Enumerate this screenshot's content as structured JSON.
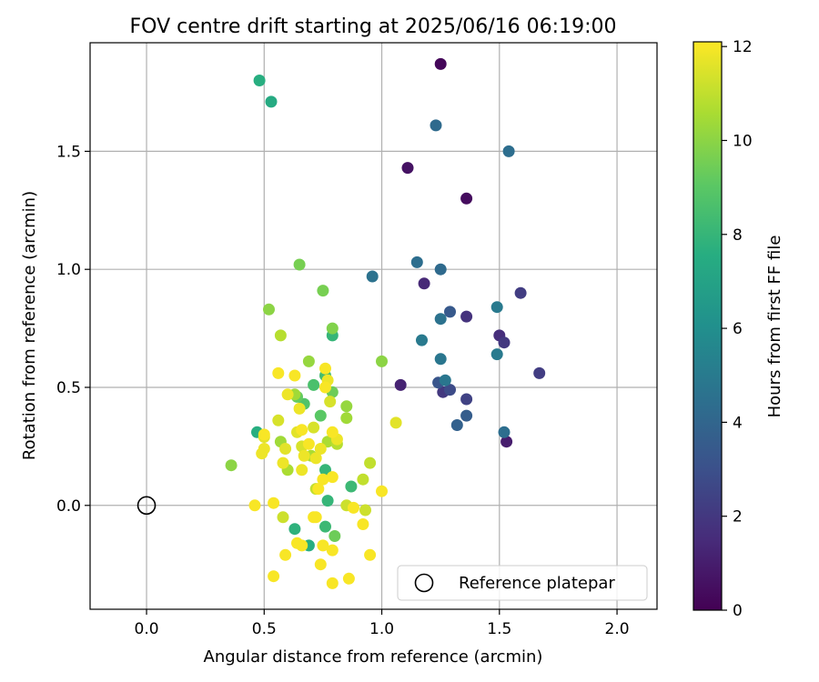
{
  "chart_data": {
    "type": "scatter",
    "title": "FOV centre drift starting at 2025/06/16 06:19:00",
    "xlabel": "Angular distance from reference (arcmin)",
    "ylabel": "Rotation from reference (arcmin)",
    "xlim": [
      -0.24,
      2.17
    ],
    "ylim": [
      -0.44,
      1.96
    ],
    "xticks": [
      0.0,
      0.5,
      1.0,
      1.5,
      2.0
    ],
    "xtick_labels": [
      "0.0",
      "0.5",
      "1.0",
      "1.5",
      "2.0"
    ],
    "yticks": [
      0.0,
      0.5,
      1.0,
      1.5
    ],
    "ytick_labels": [
      "0.0",
      "0.5",
      "1.0",
      "1.5"
    ],
    "grid": true,
    "legend": {
      "location": "lower-right",
      "entries": [
        "Reference platepar"
      ]
    },
    "colorbar": {
      "label": "Hours from first FF file",
      "colormap": "viridis",
      "min": 0,
      "max": 12.1,
      "ticks": [
        0,
        2,
        4,
        6,
        8,
        10,
        12
      ],
      "tick_labels": [
        "0",
        "2",
        "4",
        "6",
        "8",
        "10",
        "12"
      ]
    },
    "reference_point": {
      "name": "Reference platepar",
      "x": 0.0,
      "y": 0.0,
      "marker": "open-circle"
    },
    "points": [
      {
        "x": 1.25,
        "y": 1.87,
        "h": 0.2
      },
      {
        "x": 1.36,
        "y": 1.3,
        "h": 0.4
      },
      {
        "x": 1.11,
        "y": 1.43,
        "h": 0.6
      },
      {
        "x": 1.53,
        "y": 0.27,
        "h": 1.0
      },
      {
        "x": 1.08,
        "y": 0.51,
        "h": 1.2
      },
      {
        "x": 1.18,
        "y": 0.94,
        "h": 1.4
      },
      {
        "x": 1.5,
        "y": 0.72,
        "h": 1.6
      },
      {
        "x": 1.36,
        "y": 0.8,
        "h": 1.8
      },
      {
        "x": 1.26,
        "y": 0.48,
        "h": 2.0
      },
      {
        "x": 1.52,
        "y": 0.69,
        "h": 2.0
      },
      {
        "x": 1.59,
        "y": 0.9,
        "h": 2.2
      },
      {
        "x": 1.67,
        "y": 0.56,
        "h": 2.2
      },
      {
        "x": 1.36,
        "y": 0.45,
        "h": 2.4
      },
      {
        "x": 1.29,
        "y": 0.49,
        "h": 2.8
      },
      {
        "x": 1.24,
        "y": 0.52,
        "h": 3.2
      },
      {
        "x": 1.29,
        "y": 0.82,
        "h": 3.4
      },
      {
        "x": 1.36,
        "y": 0.38,
        "h": 3.6
      },
      {
        "x": 1.32,
        "y": 0.34,
        "h": 3.8
      },
      {
        "x": 1.23,
        "y": 1.61,
        "h": 4.2
      },
      {
        "x": 1.25,
        "y": 1.0,
        "h": 4.2
      },
      {
        "x": 1.54,
        "y": 1.5,
        "h": 4.4
      },
      {
        "x": 1.52,
        "y": 0.31,
        "h": 4.4
      },
      {
        "x": 1.15,
        "y": 1.03,
        "h": 4.4
      },
      {
        "x": 0.96,
        "y": 0.97,
        "h": 4.6
      },
      {
        "x": 1.25,
        "y": 0.79,
        "h": 4.6
      },
      {
        "x": 1.27,
        "y": 0.53,
        "h": 4.8
      },
      {
        "x": 1.25,
        "y": 0.62,
        "h": 4.8
      },
      {
        "x": 1.17,
        "y": 0.7,
        "h": 5.0
      },
      {
        "x": 1.49,
        "y": 0.84,
        "h": 5.0
      },
      {
        "x": 1.49,
        "y": 0.64,
        "h": 5.0
      },
      {
        "x": 0.53,
        "y": 1.71,
        "h": 7.4
      },
      {
        "x": 0.48,
        "y": 1.8,
        "h": 7.6
      },
      {
        "x": 0.47,
        "y": 0.31,
        "h": 7.6
      },
      {
        "x": 0.69,
        "y": -0.17,
        "h": 7.6
      },
      {
        "x": 0.63,
        "y": -0.1,
        "h": 7.8
      },
      {
        "x": 0.79,
        "y": 0.72,
        "h": 8.0
      },
      {
        "x": 0.76,
        "y": 0.15,
        "h": 8.0
      },
      {
        "x": 0.77,
        "y": 0.02,
        "h": 8.0
      },
      {
        "x": 0.76,
        "y": -0.09,
        "h": 8.2
      },
      {
        "x": 0.87,
        "y": 0.08,
        "h": 8.2
      },
      {
        "x": 0.76,
        "y": 0.55,
        "h": 8.4
      },
      {
        "x": 0.71,
        "y": 0.51,
        "h": 8.6
      },
      {
        "x": 0.67,
        "y": 0.43,
        "h": 8.8
      },
      {
        "x": 0.74,
        "y": 0.38,
        "h": 9.0
      },
      {
        "x": 0.64,
        "y": 0.46,
        "h": 9.2
      },
      {
        "x": 0.79,
        "y": 0.48,
        "h": 9.4
      },
      {
        "x": 0.8,
        "y": -0.13,
        "h": 9.4
      },
      {
        "x": 0.65,
        "y": 1.02,
        "h": 9.6
      },
      {
        "x": 0.75,
        "y": 0.91,
        "h": 9.6
      },
      {
        "x": 0.79,
        "y": 0.75,
        "h": 9.8
      },
      {
        "x": 0.52,
        "y": 0.83,
        "h": 10.0
      },
      {
        "x": 0.36,
        "y": 0.17,
        "h": 10.0
      },
      {
        "x": 1.0,
        "y": 0.61,
        "h": 10.0
      },
      {
        "x": 0.69,
        "y": 0.61,
        "h": 10.2
      },
      {
        "x": 0.85,
        "y": 0.42,
        "h": 10.2
      },
      {
        "x": 0.85,
        "y": 0.37,
        "h": 10.4
      },
      {
        "x": 0.63,
        "y": 0.47,
        "h": 10.4
      },
      {
        "x": 0.57,
        "y": 0.27,
        "h": 10.4
      },
      {
        "x": 0.6,
        "y": 0.15,
        "h": 10.6
      },
      {
        "x": 0.7,
        "y": 0.21,
        "h": 10.6
      },
      {
        "x": 0.77,
        "y": 0.27,
        "h": 10.6
      },
      {
        "x": 0.81,
        "y": 0.26,
        "h": 10.8
      },
      {
        "x": 0.57,
        "y": 0.72,
        "h": 10.8
      },
      {
        "x": 0.95,
        "y": 0.18,
        "h": 11.0
      },
      {
        "x": 0.92,
        "y": 0.11,
        "h": 11.0
      },
      {
        "x": 0.72,
        "y": 0.07,
        "h": 11.0
      },
      {
        "x": 0.85,
        "y": 0.0,
        "h": 11.2
      },
      {
        "x": 0.93,
        "y": -0.02,
        "h": 11.2
      },
      {
        "x": 0.58,
        "y": -0.05,
        "h": 11.2
      },
      {
        "x": 0.56,
        "y": 0.36,
        "h": 11.4
      },
      {
        "x": 0.66,
        "y": 0.25,
        "h": 11.4
      },
      {
        "x": 0.71,
        "y": 0.33,
        "h": 11.4
      },
      {
        "x": 0.78,
        "y": 0.44,
        "h": 11.4
      },
      {
        "x": 0.59,
        "y": 0.24,
        "h": 11.6
      },
      {
        "x": 0.5,
        "y": 0.29,
        "h": 11.6
      },
      {
        "x": 0.64,
        "y": 0.31,
        "h": 11.6
      },
      {
        "x": 1.06,
        "y": 0.35,
        "h": 11.6
      },
      {
        "x": 0.77,
        "y": 0.53,
        "h": 11.8
      },
      {
        "x": 0.6,
        "y": 0.47,
        "h": 11.8
      },
      {
        "x": 0.65,
        "y": 0.41,
        "h": 11.8
      },
      {
        "x": 0.81,
        "y": 0.28,
        "h": 11.8
      },
      {
        "x": 0.67,
        "y": 0.21,
        "h": 11.8
      },
      {
        "x": 0.72,
        "y": 0.2,
        "h": 11.8
      },
      {
        "x": 0.74,
        "y": 0.24,
        "h": 11.8
      },
      {
        "x": 0.66,
        "y": 0.15,
        "h": 11.8
      },
      {
        "x": 0.5,
        "y": 0.24,
        "h": 11.8
      },
      {
        "x": 0.49,
        "y": 0.22,
        "h": 11.8
      },
      {
        "x": 0.58,
        "y": 0.18,
        "h": 11.8
      },
      {
        "x": 0.63,
        "y": 0.55,
        "h": 12.0
      },
      {
        "x": 0.56,
        "y": 0.56,
        "h": 12.0
      },
      {
        "x": 0.76,
        "y": 0.5,
        "h": 12.0
      },
      {
        "x": 0.76,
        "y": 0.58,
        "h": 12.0
      },
      {
        "x": 0.79,
        "y": 0.31,
        "h": 12.0
      },
      {
        "x": 0.66,
        "y": 0.32,
        "h": 12.0
      },
      {
        "x": 0.69,
        "y": 0.26,
        "h": 12.0
      },
      {
        "x": 0.5,
        "y": 0.3,
        "h": 12.0
      },
      {
        "x": 0.79,
        "y": 0.12,
        "h": 12.0
      },
      {
        "x": 0.75,
        "y": 0.11,
        "h": 12.0
      },
      {
        "x": 0.46,
        "y": 0.0,
        "h": 12.0
      },
      {
        "x": 0.54,
        "y": 0.01,
        "h": 12.0
      },
      {
        "x": 0.88,
        "y": -0.01,
        "h": 12.0
      },
      {
        "x": 0.72,
        "y": -0.05,
        "h": 12.0
      },
      {
        "x": 0.71,
        "y": -0.05,
        "h": 12.0
      },
      {
        "x": 0.92,
        "y": -0.08,
        "h": 12.0
      },
      {
        "x": 0.64,
        "y": -0.16,
        "h": 12.0
      },
      {
        "x": 0.66,
        "y": -0.17,
        "h": 12.0
      },
      {
        "x": 0.75,
        "y": -0.17,
        "h": 12.0
      },
      {
        "x": 0.79,
        "y": -0.19,
        "h": 12.0
      },
      {
        "x": 0.59,
        "y": -0.21,
        "h": 12.0
      },
      {
        "x": 0.95,
        "y": -0.21,
        "h": 12.0
      },
      {
        "x": 0.74,
        "y": -0.25,
        "h": 12.0
      },
      {
        "x": 0.54,
        "y": -0.3,
        "h": 12.0
      },
      {
        "x": 0.86,
        "y": -0.31,
        "h": 12.0
      },
      {
        "x": 0.79,
        "y": -0.33,
        "h": 12.0
      },
      {
        "x": 1.0,
        "y": 0.06,
        "h": 12.0
      },
      {
        "x": 0.73,
        "y": 0.07,
        "h": 12.0
      }
    ]
  }
}
